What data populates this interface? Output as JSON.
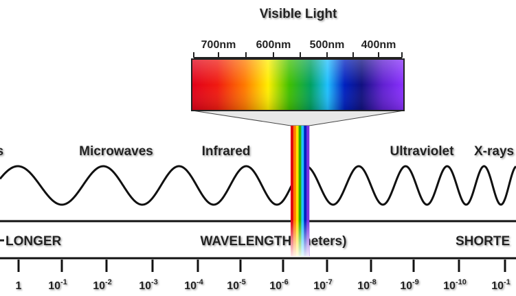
{
  "title": "Visible Light",
  "nm_labels": [
    "700nm",
    "600nm",
    "500nm",
    "400nm"
  ],
  "wave_labels": [
    "es",
    "Microwaves",
    "Infrared",
    "Ultraviolet",
    "X-rays"
  ],
  "band": {
    "left": "LONGER",
    "center": "WAVELENGTH (meters)",
    "right": "SHORTE"
  },
  "scale": [
    {
      "base": "1"
    },
    {
      "base": "10",
      "exp": "-1"
    },
    {
      "base": "10",
      "exp": "-2"
    },
    {
      "base": "10",
      "exp": "-3"
    },
    {
      "base": "10",
      "exp": "-4"
    },
    {
      "base": "10",
      "exp": "-5"
    },
    {
      "base": "10",
      "exp": "-6"
    },
    {
      "base": "10",
      "exp": "-7"
    },
    {
      "base": "10",
      "exp": "-8"
    },
    {
      "base": "10",
      "exp": "-9"
    },
    {
      "base": "10",
      "exp": "-10"
    },
    {
      "base": "10",
      "exp": "-1"
    }
  ]
}
